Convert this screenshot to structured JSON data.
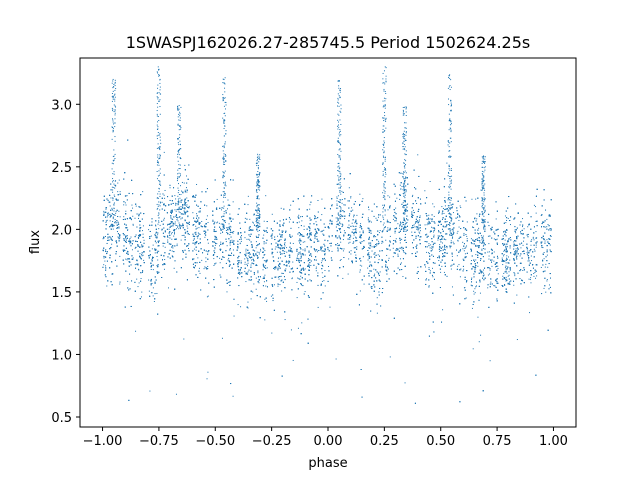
{
  "chart_data": {
    "type": "scatter",
    "title": "1SWASPJ162026.27-285745.5 Period 1502624.25s",
    "xlabel": "phase",
    "ylabel": "flux",
    "xlim": [
      -1.1,
      1.1
    ],
    "ylim": [
      0.42,
      3.37
    ],
    "xticks": [
      -1.0,
      -0.75,
      -0.5,
      -0.25,
      0.0,
      0.25,
      0.5,
      0.75,
      1.0
    ],
    "xtick_labels": [
      "−1.00",
      "−0.75",
      "−0.50",
      "−0.25",
      "0.00",
      "0.25",
      "0.50",
      "0.75",
      "1.00"
    ],
    "yticks": [
      0.5,
      1.0,
      1.5,
      2.0,
      2.5,
      3.0
    ],
    "ytick_labels": [
      "0.5",
      "1.0",
      "1.5",
      "2.0",
      "2.5",
      "3.0"
    ],
    "grid": false,
    "marker_color": "#1f77b4",
    "series": [
      {
        "description": "folded light curve, mirrored over two cycles (phase -1 to 1)",
        "phase_profile": [
          [
            -1.0,
            1.9
          ],
          [
            -0.97,
            2.0
          ],
          [
            -0.93,
            2.05
          ],
          [
            -0.9,
            2.0
          ],
          [
            -0.87,
            1.85
          ],
          [
            -0.83,
            1.9
          ],
          [
            -0.8,
            1.78
          ],
          [
            -0.77,
            1.8
          ],
          [
            -0.73,
            1.98
          ],
          [
            -0.7,
            2.0
          ],
          [
            -0.67,
            2.05
          ],
          [
            -0.63,
            2.1
          ],
          [
            -0.6,
            2.0
          ],
          [
            -0.57,
            1.95
          ],
          [
            -0.53,
            1.85
          ],
          [
            -0.5,
            1.9
          ],
          [
            -0.47,
            2.0
          ],
          [
            -0.43,
            1.9
          ],
          [
            -0.4,
            1.8
          ],
          [
            -0.37,
            1.75
          ],
          [
            -0.33,
            1.85
          ],
          [
            -0.3,
            1.85
          ],
          [
            -0.27,
            1.75
          ],
          [
            -0.23,
            1.78
          ],
          [
            -0.2,
            1.85
          ],
          [
            -0.17,
            1.8
          ],
          [
            -0.13,
            1.82
          ],
          [
            -0.1,
            1.85
          ],
          [
            -0.07,
            1.9
          ],
          [
            -0.03,
            1.82
          ],
          [
            0.0,
            1.9
          ],
          [
            0.03,
            2.0
          ],
          [
            0.07,
            2.05
          ],
          [
            0.1,
            2.0
          ],
          [
            0.13,
            1.85
          ],
          [
            0.17,
            1.9
          ],
          [
            0.2,
            1.78
          ],
          [
            0.23,
            1.8
          ],
          [
            0.27,
            1.98
          ],
          [
            0.3,
            2.0
          ],
          [
            0.33,
            2.05
          ],
          [
            0.37,
            2.1
          ],
          [
            0.4,
            2.0
          ],
          [
            0.43,
            1.95
          ],
          [
            0.47,
            1.85
          ],
          [
            0.5,
            1.9
          ],
          [
            0.53,
            2.0
          ],
          [
            0.57,
            1.9
          ],
          [
            0.6,
            1.8
          ],
          [
            0.63,
            1.75
          ],
          [
            0.67,
            1.85
          ],
          [
            0.7,
            1.85
          ],
          [
            0.73,
            1.75
          ],
          [
            0.77,
            1.78
          ],
          [
            0.8,
            1.85
          ],
          [
            0.83,
            1.8
          ],
          [
            0.87,
            1.82
          ],
          [
            0.9,
            1.85
          ],
          [
            0.93,
            1.9
          ],
          [
            0.97,
            1.82
          ],
          [
            1.0,
            1.9
          ]
        ],
        "flares": [
          {
            "phase": -0.95,
            "peak": 3.2
          },
          {
            "phase": -0.75,
            "peak": 3.3
          },
          {
            "phase": -0.66,
            "peak": 3.0
          },
          {
            "phase": -0.46,
            "peak": 3.25
          },
          {
            "phase": -0.31,
            "peak": 2.6
          },
          {
            "phase": 0.05,
            "peak": 3.2
          },
          {
            "phase": 0.25,
            "peak": 3.3
          },
          {
            "phase": 0.34,
            "peak": 3.0
          },
          {
            "phase": 0.54,
            "peak": 3.25
          },
          {
            "phase": 0.69,
            "peak": 2.6
          }
        ],
        "scatter_sigma": 0.18,
        "n_points": 9000
      }
    ]
  }
}
